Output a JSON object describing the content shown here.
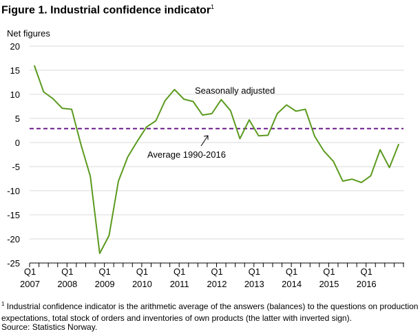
{
  "header": {
    "title": "Figure 1. Industrial confidence indicator",
    "title_sup": "1"
  },
  "footnote": {
    "marker": "1",
    "text": " Industrial confidence indicator is the arithmetic average of the answers (balances) to the questions on production expectations, total stock of orders and inventories of own products (the latter with inverted sign).",
    "source": "Source: Statistics Norway."
  },
  "colors": {
    "series_line": "#5a9a1e",
    "average_line": "#6a1b8a",
    "grid": "#d9d9d9",
    "axis": "#000000"
  },
  "chart_data": {
    "type": "line",
    "ylabel": "Net figures",
    "ylim": [
      -25,
      20
    ],
    "yticks": [
      20,
      15,
      10,
      5,
      0,
      -5,
      -10,
      -15,
      -20,
      -25
    ],
    "grid": "horizontal",
    "x_quarters": 40,
    "x_labels": [
      {
        "quarter": "Q1",
        "year": "2007",
        "index": 0
      },
      {
        "quarter": "Q1",
        "year": "2008",
        "index": 4
      },
      {
        "quarter": "Q1",
        "year": "2009",
        "index": 8
      },
      {
        "quarter": "Q1",
        "year": "2010",
        "index": 12
      },
      {
        "quarter": "Q1",
        "year": "2011",
        "index": 16
      },
      {
        "quarter": "Q1",
        "year": "2012",
        "index": 20
      },
      {
        "quarter": "Q1",
        "year": "2013",
        "index": 24
      },
      {
        "quarter": "Q1",
        "year": "2014",
        "index": 28
      },
      {
        "quarter": "Q1",
        "year": "2015",
        "index": 32
      },
      {
        "quarter": "Q1",
        "year": "2016",
        "index": 36
      }
    ],
    "series": [
      {
        "name": "Seasonally adjusted",
        "values": [
          16,
          10.5,
          9.1,
          7.1,
          6.9,
          -0.5,
          -7,
          -23,
          -19.3,
          -8,
          -3,
          0.2,
          3.2,
          4.5,
          8.7,
          11,
          9,
          8.5,
          5.7,
          6,
          8.9,
          6.6,
          0.8,
          4.7,
          1.4,
          1.5,
          6,
          7.8,
          6.5,
          6.9,
          1.3,
          -1.8,
          -3.9,
          -8,
          -7.6,
          -8.3,
          -6.9,
          -1.5,
          -5.2,
          -0.3
        ]
      }
    ],
    "reference_line": {
      "name": "Average 1990-2016",
      "value": 2.9
    }
  }
}
